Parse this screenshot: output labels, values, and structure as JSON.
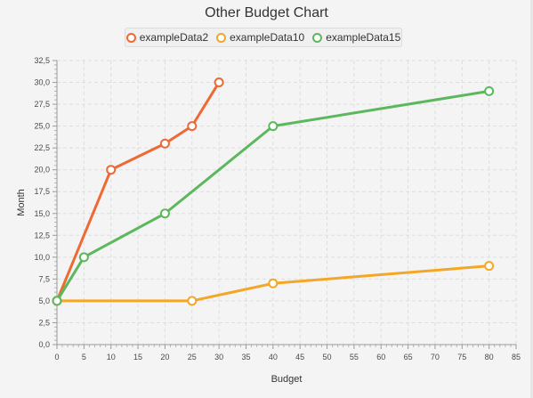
{
  "chart_data": {
    "type": "line",
    "title": "Other Budget Chart",
    "xlabel": "Budget",
    "ylabel": "Month",
    "xlim": [
      0,
      85
    ],
    "ylim": [
      0,
      32.5
    ],
    "x_ticks": [
      "0",
      "5",
      "10",
      "15",
      "20",
      "25",
      "30",
      "35",
      "40",
      "45",
      "50",
      "55",
      "60",
      "65",
      "70",
      "75",
      "80",
      "85"
    ],
    "y_ticks": [
      "0,0",
      "2,5",
      "5,0",
      "7,5",
      "10,0",
      "12,5",
      "15,0",
      "17,5",
      "20,0",
      "22,5",
      "25,0",
      "27,5",
      "30,0",
      "32,5"
    ],
    "grid": true,
    "legend_position": "top",
    "series": [
      {
        "name": "exampleData2",
        "color": "#ee6a35",
        "points": [
          [
            0,
            5
          ],
          [
            10,
            20
          ],
          [
            20,
            23
          ],
          [
            25,
            25
          ],
          [
            30,
            30
          ]
        ]
      },
      {
        "name": "exampleData10",
        "color": "#f4a726",
        "points": [
          [
            0,
            5
          ],
          [
            25,
            5
          ],
          [
            40,
            7
          ],
          [
            80,
            9
          ]
        ]
      },
      {
        "name": "exampleData15",
        "color": "#5cb85c",
        "points": [
          [
            0,
            5
          ],
          [
            5,
            10
          ],
          [
            20,
            15
          ],
          [
            40,
            25
          ],
          [
            80,
            29
          ]
        ]
      }
    ]
  }
}
